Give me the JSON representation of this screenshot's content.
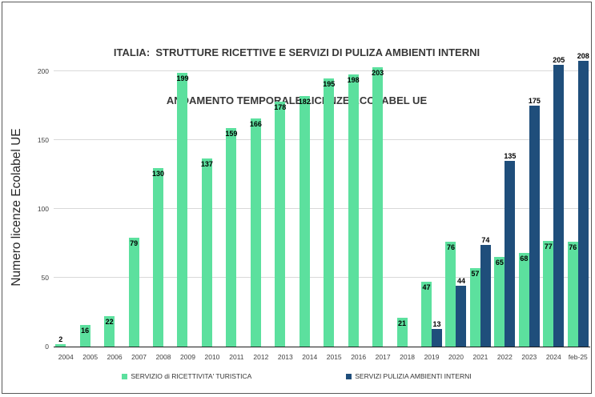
{
  "title": {
    "line1": "ITALIA:  STRUTTURE RICETTIVE E SERVIZI DI PULIZA AMBIENTI INTERNI",
    "line2": "ANDAMENTO TEMPORALE LICENZE ECOLABEL UE"
  },
  "chart_data": {
    "type": "bar",
    "title": "ITALIA: STRUTTURE RICETTIVE E SERVIZI DI PULIZA AMBIENTI INTERNI - ANDAMENTO TEMPORALE LICENZE ECOLABEL UE",
    "xlabel": "",
    "ylabel": "Numero licenze Ecolabel UE",
    "categories": [
      "2004",
      "2005",
      "2006",
      "2007",
      "2008",
      "2009",
      "2010",
      "2011",
      "2012",
      "2013",
      "2014",
      "2015",
      "2016",
      "2017",
      "2018",
      "2019",
      "2020",
      "2021",
      "2022",
      "2023",
      "2024",
      "feb-25"
    ],
    "series": [
      {
        "name": "SERVIZIO di RICETTIVITA' TURISTICA",
        "color": "#5CE09E",
        "label_placement": "inside-end",
        "values": [
          2,
          16,
          22,
          79,
          130,
          199,
          137,
          159,
          166,
          178,
          182,
          195,
          198,
          203,
          21,
          47,
          76,
          57,
          65,
          68,
          77,
          76
        ]
      },
      {
        "name": "SERVIZI PULIZIA AMBIENTI INTERNI",
        "color": "#1F4E7B",
        "label_placement": "outside-end",
        "values": [
          null,
          null,
          null,
          null,
          null,
          null,
          null,
          null,
          null,
          null,
          null,
          null,
          null,
          null,
          null,
          13,
          44,
          74,
          135,
          175,
          205,
          208
        ]
      }
    ],
    "y_ticks": [
      0,
      50,
      100,
      150,
      200
    ],
    "ylim": [
      0,
      220
    ],
    "grid": true,
    "legend_position": "bottom"
  }
}
